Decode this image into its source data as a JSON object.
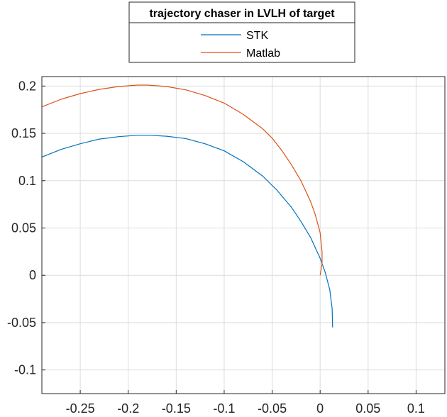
{
  "chart_data": {
    "type": "line",
    "title": "",
    "xlabel": "",
    "ylabel": "",
    "xlim": [
      -0.29,
      0.13
    ],
    "ylim": [
      -0.125,
      0.21
    ],
    "grid": true,
    "legend": {
      "title": "trajectory chaser in LVLH of target",
      "placement": "top-center, outside"
    },
    "x_ticks": [
      -0.25,
      -0.2,
      -0.15,
      -0.1,
      -0.05,
      0,
      0.05,
      0.1
    ],
    "x_tick_labels": [
      "-0.25",
      "-0.2",
      "-0.15",
      "-0.1",
      "-0.05",
      "0",
      "0.05",
      "0.1"
    ],
    "y_ticks": [
      -0.1,
      -0.05,
      0,
      0.05,
      0.1,
      0.15,
      0.2
    ],
    "y_tick_labels": [
      "-0.1",
      "-0.05",
      "0",
      "0.05",
      "0.1",
      "0.15",
      "0.2"
    ],
    "series": [
      {
        "name": "STK",
        "color": "#0072BD",
        "x": [
          -0.29,
          -0.27,
          -0.25,
          -0.23,
          -0.21,
          -0.19,
          -0.178,
          -0.16,
          -0.14,
          -0.12,
          -0.1,
          -0.08,
          -0.06,
          -0.045,
          -0.03,
          -0.02,
          -0.01,
          0.0,
          0.005,
          0.01,
          0.0125,
          0.013
        ],
        "y": [
          0.125,
          0.133,
          0.139,
          0.144,
          0.1465,
          0.148,
          0.148,
          0.147,
          0.1445,
          0.139,
          0.1315,
          0.12,
          0.105,
          0.09,
          0.072,
          0.057,
          0.04,
          0.018,
          0.004,
          -0.015,
          -0.035,
          -0.055
        ]
      },
      {
        "name": "Matlab",
        "color": "#D95319",
        "x": [
          -0.29,
          -0.27,
          -0.25,
          -0.23,
          -0.21,
          -0.19,
          -0.18,
          -0.16,
          -0.14,
          -0.12,
          -0.1,
          -0.08,
          -0.06,
          -0.05,
          -0.04,
          -0.03,
          -0.02,
          -0.01,
          -0.005,
          0.0,
          0.002,
          0.002,
          0.0
        ],
        "y": [
          0.178,
          0.186,
          0.192,
          0.1965,
          0.1995,
          0.201,
          0.201,
          0.1995,
          0.196,
          0.19,
          0.182,
          0.17,
          0.155,
          0.145,
          0.132,
          0.117,
          0.1,
          0.078,
          0.064,
          0.045,
          0.025,
          0.012,
          0.0
        ]
      }
    ]
  }
}
